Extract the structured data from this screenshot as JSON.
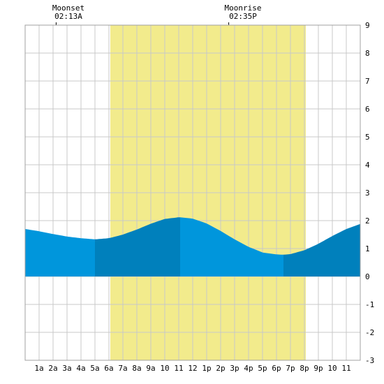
{
  "annotations": {
    "moonset": {
      "label": "Moonset",
      "time": "02:13A",
      "hour": 2.22
    },
    "moonrise": {
      "label": "Moonrise",
      "time": "02:35P",
      "hour": 14.58
    }
  },
  "colors": {
    "background": "#ffffff",
    "grid": "#c8c8c8",
    "frame": "#a0a0a0",
    "daylight": "#f2eb8c",
    "tide_light": "#0096dc",
    "tide_dark": "#0080bc"
  },
  "chart_data": {
    "type": "area",
    "title": "",
    "xlabel": "",
    "ylabel": "",
    "xlim": [
      0,
      24
    ],
    "ylim": [
      -3,
      9
    ],
    "grid": true,
    "x_tick_labels": [
      "1a",
      "2a",
      "3a",
      "4a",
      "5a",
      "6a",
      "7a",
      "8a",
      "9a",
      "10",
      "11",
      "12",
      "1p",
      "2p",
      "3p",
      "4p",
      "5p",
      "6p",
      "7p",
      "8p",
      "9p",
      "10",
      "11"
    ],
    "y_ticks": [
      -3,
      -2,
      -1,
      0,
      1,
      2,
      3,
      4,
      5,
      6,
      7,
      8,
      9
    ],
    "daylight": {
      "start_hour": 6.1,
      "end_hour": 20.1
    },
    "tide_extremes": [
      {
        "type": "low",
        "hour": 5.0,
        "height": 1.33
      },
      {
        "type": "high",
        "hour": 11.1,
        "height": 2.12
      },
      {
        "type": "low",
        "hour": 18.5,
        "height": 0.78
      }
    ],
    "series": [
      {
        "x": [
          0,
          1,
          2,
          3,
          4,
          5,
          6,
          7,
          8,
          9,
          10,
          11,
          11.1,
          12,
          13,
          14,
          15,
          16,
          17,
          18,
          18.5,
          19,
          20,
          21,
          22,
          23,
          24
        ],
        "values": [
          1.7,
          1.62,
          1.52,
          1.43,
          1.37,
          1.33,
          1.37,
          1.5,
          1.68,
          1.89,
          2.06,
          2.12,
          2.12,
          2.07,
          1.9,
          1.63,
          1.33,
          1.06,
          0.86,
          0.79,
          0.78,
          0.8,
          0.94,
          1.17,
          1.45,
          1.7,
          1.88
        ]
      }
    ]
  }
}
